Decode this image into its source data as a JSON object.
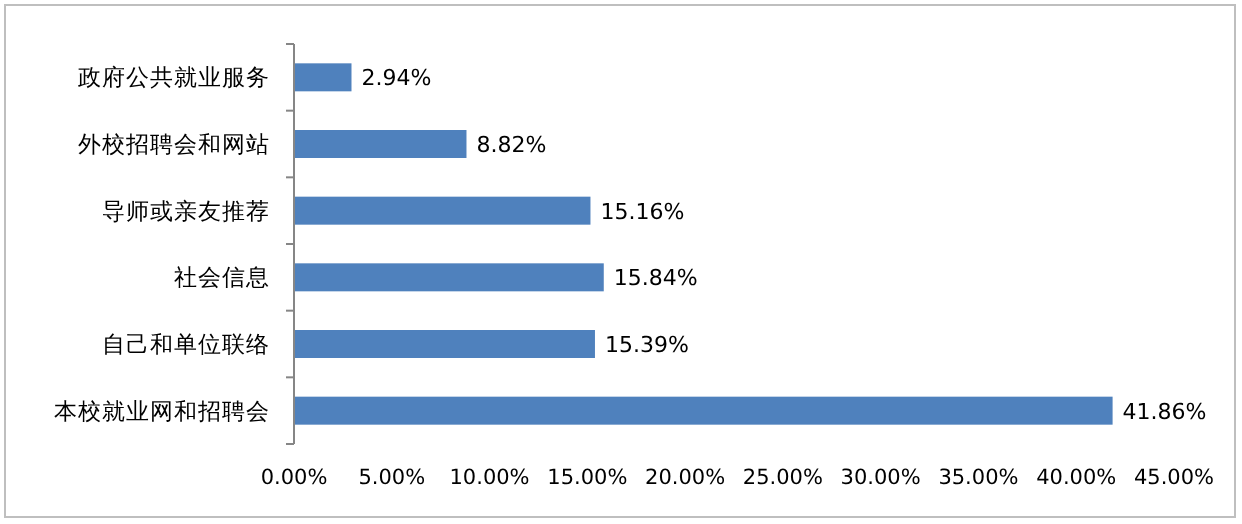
{
  "chart_data": {
    "type": "bar",
    "orientation": "horizontal",
    "categories": [
      "政府公共就业服务",
      "外校招聘会和网站",
      "导师或亲友推荐",
      "社会信息",
      "自己和单位联络",
      "本校就业网和招聘会"
    ],
    "values": [
      2.94,
      8.82,
      15.16,
      15.84,
      15.39,
      41.86
    ],
    "color": "#4f81bd",
    "value_labels": [
      "2.94%",
      "8.82%",
      "15.16%",
      "15.84%",
      "15.39%",
      "41.86%"
    ],
    "xlim": [
      0,
      45
    ],
    "xticks": [
      {
        "value": 0,
        "label": "0.00%"
      },
      {
        "value": 5,
        "label": "5.00%"
      },
      {
        "value": 10,
        "label": "10.00%"
      },
      {
        "value": 15,
        "label": "15.00%"
      },
      {
        "value": 20,
        "label": "20.00%"
      },
      {
        "value": 25,
        "label": "25.00%"
      },
      {
        "value": 30,
        "label": "30.00%"
      },
      {
        "value": 35,
        "label": "35.00%"
      },
      {
        "value": 40,
        "label": "40.00%"
      },
      {
        "value": 45,
        "label": "45.00%"
      }
    ],
    "grid": false
  }
}
